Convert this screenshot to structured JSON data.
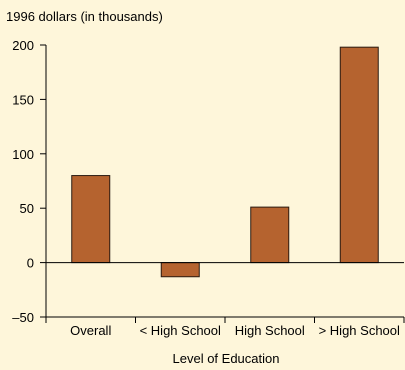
{
  "chart_data": {
    "type": "bar",
    "title": "",
    "ylabel": "1996 dollars (in thousands)",
    "xlabel": "Level of Education",
    "categories": [
      "Overall",
      "< High School",
      "High School",
      "> High School"
    ],
    "values": [
      80,
      -13,
      51,
      198
    ],
    "ylim": [
      -50,
      200
    ],
    "yticks": [
      200,
      150,
      100,
      50,
      0,
      -50
    ],
    "grid": false,
    "legend": "none",
    "colors": {
      "background": "#FEF6DA",
      "bar": "#B5632F",
      "bar_stroke": "#2A1A10",
      "axis": "#000000"
    }
  }
}
